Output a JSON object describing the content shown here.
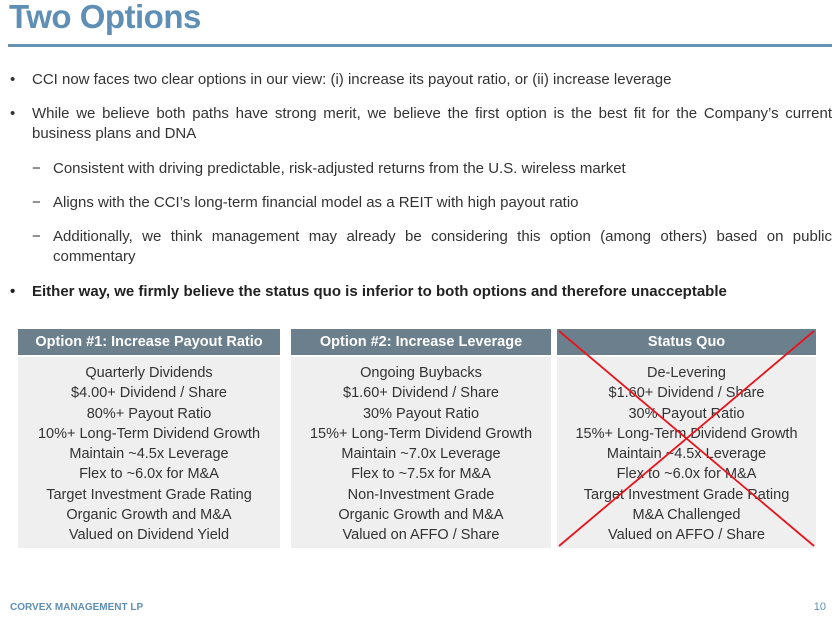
{
  "title": "Two Options",
  "bullets": [
    {
      "marker": "•",
      "text": "CCI now faces two clear options in our view: (i) increase its payout ratio, or (ii) increase leverage"
    },
    {
      "marker": "•",
      "text": "While we believe both paths have strong merit, we believe the first option is the best fit for the Company’s current business plans and DNA"
    },
    {
      "marker": "−",
      "text": "Consistent with driving predictable, risk-adjusted returns from the U.S. wireless market"
    },
    {
      "marker": "−",
      "text": "Aligns with the CCI’s long-term financial model as a REIT with high payout ratio"
    },
    {
      "marker": "−",
      "text": "Additionally, we think management may already be considering this option (among others) based on public commentary"
    },
    {
      "marker": "•",
      "text": "Either way, we firmly believe the status quo is inferior to both options and therefore unacceptable"
    }
  ],
  "options": [
    {
      "header": "Option #1: Increase Payout Ratio",
      "items": [
        "Quarterly Dividends",
        "$4.00+ Dividend / Share",
        "80%+ Payout Ratio",
        "10%+ Long-Term Dividend Growth",
        "Maintain ~4.5x Leverage",
        "Flex to ~6.0x for M&A",
        "Target Investment Grade Rating",
        "Organic Growth and M&A",
        "Valued on Dividend Yield"
      ]
    },
    {
      "header": "Option #2: Increase Leverage",
      "items": [
        "Ongoing Buybacks",
        "$1.60+ Dividend / Share",
        "30% Payout Ratio",
        "15%+ Long-Term Dividend Growth",
        "Maintain ~7.0x Leverage",
        "Flex to ~7.5x for M&A",
        "Non-Investment Grade",
        "Organic Growth and M&A",
        "Valued on AFFO / Share"
      ]
    },
    {
      "header": "Status Quo",
      "items": [
        "De-Levering",
        "$1.60+ Dividend / Share",
        "30% Payout Ratio",
        "15%+ Long-Term Dividend Growth",
        "Maintain ~4.5x Leverage",
        "Flex to ~6.0x for M&A",
        "Target Investment Grade Rating",
        "M&A Challenged",
        "Valued on AFFO / Share"
      ]
    }
  ],
  "colors": {
    "accent": "#5f8fb4",
    "header_bg": "#6b7f8c",
    "cross": "#e8141c"
  },
  "footer": {
    "company": "CORVEX MANAGEMENT LP",
    "page": "10"
  }
}
